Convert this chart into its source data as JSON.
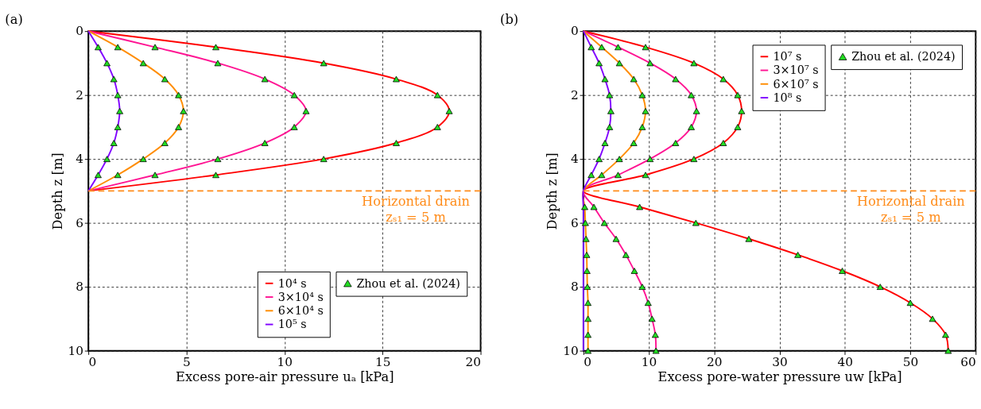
{
  "chart_data": [
    {
      "type": "line",
      "title": "(a)",
      "xlabel": "Excess pore-air pressure uₐ [kPa]",
      "ylabel": "Depth z [m]",
      "xlim": [
        0,
        20
      ],
      "xticks": [
        0,
        5,
        10,
        15,
        20
      ],
      "ylim": [
        10,
        0
      ],
      "yticks": [
        0,
        2,
        4,
        6,
        8,
        10
      ],
      "grid": true,
      "legend": "bottom right",
      "line_style": "solid",
      "ref_lines": [
        {
          "axis": "y",
          "value": 5,
          "label": "Horizontal drain\nzₛ₁ = 5 m",
          "color": "#ff8c1a",
          "line_style": "dashed"
        }
      ],
      "series": [
        {
          "name": "10⁴ s",
          "color": "#ff0000",
          "x": [
            0,
            6.5,
            12.0,
            15.7,
            17.8,
            18.4,
            17.8,
            15.7,
            12.0,
            6.5,
            0
          ],
          "values": [
            0,
            0.5,
            1,
            1.5,
            2,
            2.5,
            3,
            3.5,
            4,
            4.5,
            5
          ]
        },
        {
          "name": "3×10⁴ s",
          "color": "#ff1493",
          "x": [
            0,
            3.4,
            6.6,
            9.0,
            10.5,
            11.1,
            10.5,
            9.0,
            6.6,
            3.4,
            0
          ],
          "values": [
            0,
            0.5,
            1,
            1.5,
            2,
            2.5,
            3,
            3.5,
            4,
            4.5,
            5
          ]
        },
        {
          "name": "6×10⁴ s",
          "color": "#ff8c00",
          "x": [
            0,
            1.5,
            2.8,
            3.9,
            4.6,
            4.85,
            4.6,
            3.9,
            2.8,
            1.5,
            0
          ],
          "values": [
            0,
            0.5,
            1,
            1.5,
            2,
            2.5,
            3,
            3.5,
            4,
            4.5,
            5
          ]
        },
        {
          "name": "10⁵ s",
          "color": "#8000ff",
          "x": [
            0,
            0.5,
            0.95,
            1.3,
            1.5,
            1.6,
            1.5,
            1.3,
            0.95,
            0.5,
            0
          ],
          "values": [
            0,
            0.5,
            1,
            1.5,
            2,
            2.5,
            3,
            3.5,
            4,
            4.5,
            5
          ]
        },
        {
          "name": "Zhou et al. (2024)",
          "type": "scatter",
          "marker": "triangle",
          "color": "#22dd22",
          "x": [
            6.5,
            12.0,
            15.7,
            17.8,
            18.4,
            17.8,
            15.7,
            12.0,
            6.5,
            3.4,
            6.6,
            9.0,
            10.5,
            11.1,
            10.5,
            9.0,
            6.6,
            3.4,
            1.5,
            2.8,
            3.9,
            4.6,
            4.85,
            4.6,
            3.9,
            2.8,
            1.5,
            0.5,
            0.95,
            1.3,
            1.5,
            1.6,
            1.5,
            1.3,
            0.95,
            0.5
          ],
          "values": [
            0.5,
            1,
            1.5,
            2,
            2.5,
            3,
            3.5,
            4,
            4.5,
            0.5,
            1,
            1.5,
            2,
            2.5,
            3,
            3.5,
            4,
            4.5,
            0.5,
            1,
            1.5,
            2,
            2.5,
            3,
            3.5,
            4,
            4.5,
            0.5,
            1,
            1.5,
            2,
            2.5,
            3,
            3.5,
            4,
            4.5
          ]
        }
      ]
    },
    {
      "type": "line",
      "title": "(b)",
      "xlabel": "Excess pore-water pressure uw [kPa]",
      "ylabel": "Depth z [m]",
      "xlim": [
        0,
        60
      ],
      "xticks": [
        0,
        10,
        20,
        30,
        40,
        50,
        60
      ],
      "ylim": [
        10,
        0
      ],
      "yticks": [
        0,
        2,
        4,
        6,
        8,
        10
      ],
      "grid": true,
      "legend": "top right",
      "line_style": "solid",
      "ref_lines": [
        {
          "axis": "y",
          "value": 5,
          "label": "Horizontal drain\nzₛ₁ = 5 m",
          "color": "#ff8c1a",
          "line_style": "dashed"
        }
      ],
      "series": [
        {
          "name": "10⁷ s",
          "color": "#ff0000",
          "x": [
            0,
            9.5,
            16.9,
            21.4,
            23.6,
            24.2,
            23.6,
            21.4,
            16.9,
            9.5,
            0,
            8.6,
            17.2,
            25.3,
            32.8,
            39.6,
            45.4,
            50.0,
            53.4,
            55.4,
            55.8
          ],
          "values": [
            0,
            0.5,
            1,
            1.5,
            2,
            2.5,
            3,
            3.5,
            4,
            4.5,
            5,
            5.5,
            6,
            6.5,
            7,
            7.5,
            8,
            8.5,
            9,
            9.5,
            10
          ]
        },
        {
          "name": "3×10⁷ s",
          "color": "#ff1493",
          "x": [
            0,
            5.3,
            10.2,
            14.1,
            16.5,
            17.3,
            16.5,
            14.1,
            10.2,
            5.3,
            0,
            1.6,
            3.2,
            5.0,
            6.5,
            7.8,
            9.0,
            9.9,
            10.5,
            11.0,
            11.1
          ],
          "values": [
            0,
            0.5,
            1,
            1.5,
            2,
            2.5,
            3,
            3.5,
            4,
            4.5,
            5,
            5.5,
            6,
            6.5,
            7,
            7.5,
            8,
            8.5,
            9,
            9.5,
            10
          ]
        },
        {
          "name": "6×10⁷ s",
          "color": "#ff8c00",
          "x": [
            0,
            2.8,
            5.5,
            7.7,
            9.0,
            9.5,
            9.0,
            7.7,
            5.5,
            2.8,
            0,
            0.2,
            0.3,
            0.4,
            0.5,
            0.55,
            0.6,
            0.7,
            0.7,
            0.7,
            0.7
          ],
          "values": [
            0,
            0.5,
            1,
            1.5,
            2,
            2.5,
            3,
            3.5,
            4,
            4.5,
            5,
            5.5,
            6,
            6.5,
            7,
            7.5,
            8,
            8.5,
            9,
            9.5,
            10
          ]
        },
        {
          "name": "10⁸ s",
          "color": "#8000ff",
          "x": [
            0,
            1.2,
            2.4,
            3.3,
            4.0,
            4.2,
            4.0,
            3.3,
            2.4,
            1.2,
            0,
            0,
            0,
            0,
            0,
            0,
            0,
            0,
            0,
            0,
            0
          ],
          "values": [
            0,
            0.5,
            1,
            1.5,
            2,
            2.5,
            3,
            3.5,
            4,
            4.5,
            5,
            5.5,
            6,
            6.5,
            7,
            7.5,
            8,
            8.5,
            9,
            9.5,
            10
          ]
        },
        {
          "name": "Zhou et al. (2024)",
          "type": "scatter",
          "marker": "triangle",
          "color": "#22dd22",
          "x": [
            9.5,
            16.9,
            21.4,
            23.6,
            24.2,
            23.6,
            21.4,
            16.9,
            9.5,
            8.6,
            17.2,
            25.3,
            32.8,
            39.6,
            45.4,
            50.0,
            53.4,
            55.4,
            55.8,
            5.3,
            10.2,
            14.1,
            16.5,
            17.3,
            16.5,
            14.1,
            10.2,
            5.3,
            1.6,
            3.2,
            5.0,
            6.5,
            7.8,
            9.0,
            9.9,
            10.5,
            11.0,
            11.1,
            2.8,
            5.5,
            7.7,
            9.0,
            9.5,
            9.0,
            7.7,
            5.5,
            2.8,
            0.2,
            0.3,
            0.4,
            0.5,
            0.55,
            0.6,
            0.7,
            0.7,
            0.7,
            0.7,
            1.2,
            2.4,
            3.3,
            4.0,
            4.2,
            4.0,
            3.3,
            2.4,
            1.2
          ],
          "values": [
            0.5,
            1,
            1.5,
            2,
            2.5,
            3,
            3.5,
            4,
            4.5,
            5.5,
            6,
            6.5,
            7,
            7.5,
            8,
            8.5,
            9,
            9.5,
            10,
            0.5,
            1,
            1.5,
            2,
            2.5,
            3,
            3.5,
            4,
            4.5,
            5.5,
            6,
            6.5,
            7,
            7.5,
            8,
            8.5,
            9,
            9.5,
            10,
            0.5,
            1,
            1.5,
            2,
            2.5,
            3,
            3.5,
            4,
            4.5,
            5.5,
            6,
            6.5,
            7,
            7.5,
            8,
            8.5,
            9,
            9.5,
            10,
            0.5,
            1,
            1.5,
            2,
            2.5,
            3,
            3.5,
            4,
            4.5
          ]
        }
      ]
    }
  ]
}
